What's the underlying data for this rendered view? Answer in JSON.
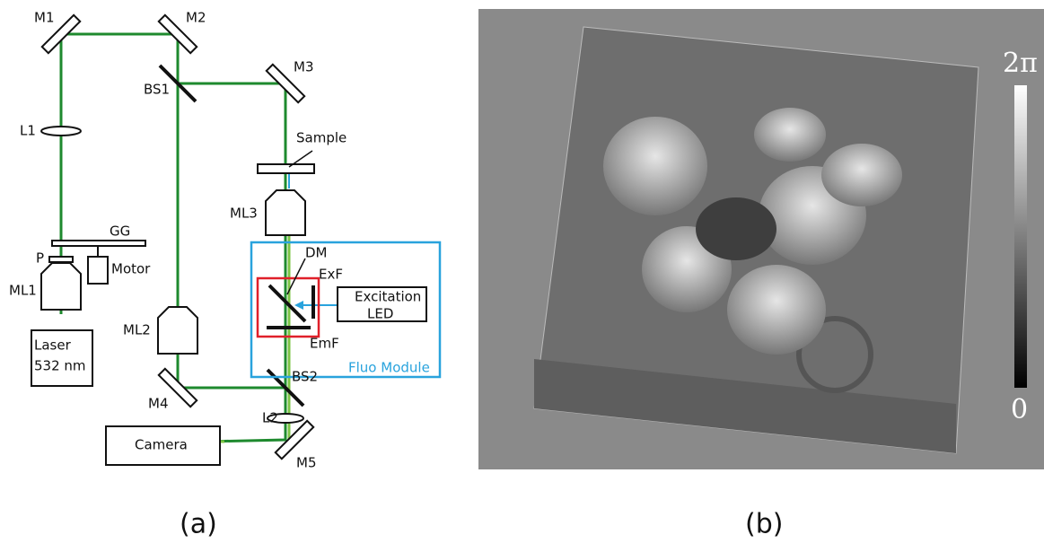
{
  "panel_a": {
    "mirror_1": "M1",
    "mirror_2": "M2",
    "mirror_3": "M3",
    "mirror_4": "M4",
    "mirror_5": "M5",
    "beam_splitter_1": "BS1",
    "beam_splitter_2": "BS2",
    "lens_1": "L1",
    "lens_2": "L2",
    "sample": "Sample",
    "objective_3": "ML3",
    "objective_1": "ML1",
    "objective_2": "ML2",
    "ground_glass": "GG",
    "polarizer": "P",
    "motor": "Motor",
    "laser": [
      "Laser",
      "532 nm"
    ],
    "camera": "Camera",
    "dichroic_mirror": "DM",
    "excitation_filter": "ExF",
    "emission_filter": "EmF",
    "excitation_led": [
      "Excitation",
      "LED"
    ],
    "fluo_module": "Fluo Module"
  },
  "panel_b": {
    "colorbar_max": "2π",
    "colorbar_min": "0"
  },
  "captions": [
    "(a)",
    "(b)"
  ]
}
